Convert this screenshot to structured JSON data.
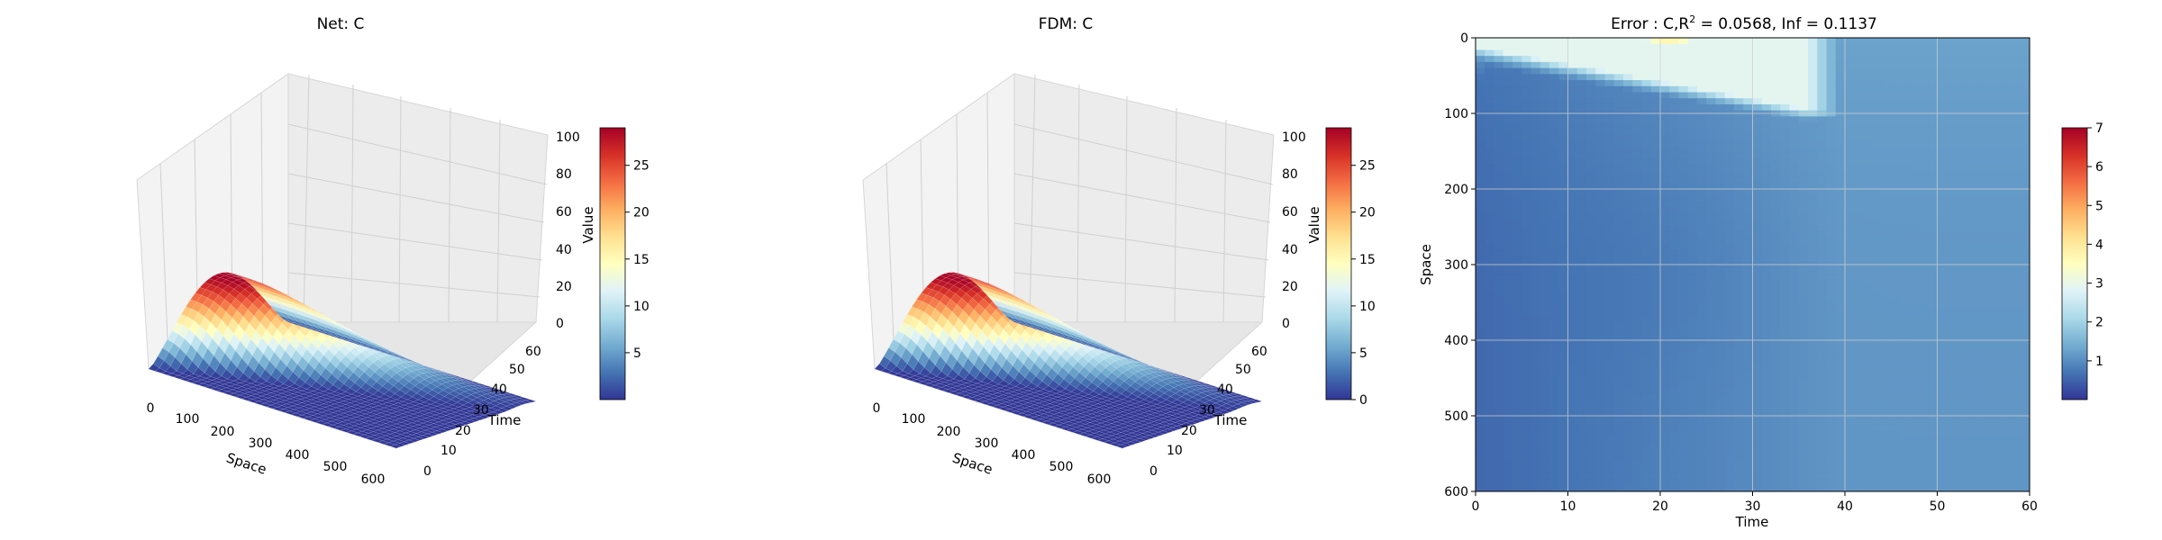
{
  "chart_data": [
    {
      "type": "surface3d",
      "title": "Net: C",
      "xlabel": "Space",
      "ylabel": "Time",
      "zlabel": "Value",
      "xlim": [
        0,
        600
      ],
      "ylim": [
        0,
        60
      ],
      "zlim": [
        0,
        100
      ],
      "xticks": [
        "0",
        "100",
        "200",
        "300",
        "400",
        "500",
        "600"
      ],
      "yticks": [
        "0",
        "10",
        "20",
        "30",
        "40",
        "50",
        "60"
      ],
      "zticks": [
        "0",
        "20",
        "40",
        "60",
        "80",
        "100"
      ],
      "peak_value": 29,
      "colorbar": {
        "colormap": "RdYlBu_r",
        "range": [
          0,
          29
        ],
        "ticks": [
          "5",
          "10",
          "15",
          "20",
          "25"
        ]
      }
    },
    {
      "type": "surface3d",
      "title": "FDM: C",
      "xlabel": "Space",
      "ylabel": "Time",
      "zlabel": "Value",
      "xlim": [
        0,
        600
      ],
      "ylim": [
        0,
        60
      ],
      "zlim": [
        0,
        100
      ],
      "xticks": [
        "0",
        "100",
        "200",
        "300",
        "400",
        "500",
        "600"
      ],
      "yticks": [
        "0",
        "10",
        "20",
        "30",
        "40",
        "50",
        "60"
      ],
      "zticks": [
        "0",
        "20",
        "40",
        "60",
        "80",
        "100"
      ],
      "peak_value": 29,
      "colorbar": {
        "colormap": "RdYlBu_r",
        "range": [
          0,
          29
        ],
        "ticks": [
          "0",
          "5",
          "10",
          "15",
          "20",
          "25"
        ]
      }
    },
    {
      "type": "heatmap",
      "title_prefix": "Error : C,R",
      "title_sup": "2",
      "title_suffix": " = 0.0568, Inf = 0.1137",
      "xlabel": "Time",
      "ylabel": "Space",
      "xlim": [
        0,
        60
      ],
      "ylim": [
        600,
        0
      ],
      "xticks": [
        "0",
        "10",
        "20",
        "30",
        "40",
        "50",
        "60"
      ],
      "yticks": [
        "0",
        "100",
        "200",
        "300",
        "400",
        "500",
        "600"
      ],
      "grid": true,
      "colorbar": {
        "colormap": "RdYlBu_r",
        "range": [
          0,
          7
        ],
        "ticks": [
          "1",
          "2",
          "3",
          "4",
          "5",
          "6",
          "7"
        ]
      }
    }
  ]
}
